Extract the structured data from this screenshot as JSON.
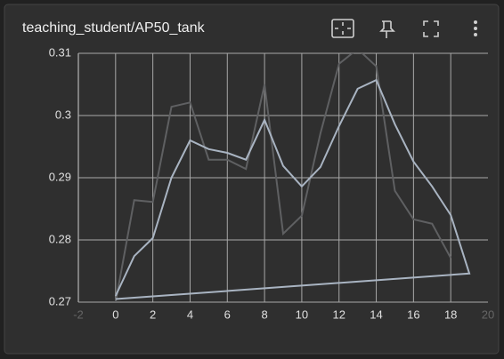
{
  "chart_data": {
    "type": "line",
    "title": "teaching_student/AP50_tank",
    "xlim": [
      -2,
      20
    ],
    "xticks": [
      -2,
      0,
      2,
      4,
      6,
      8,
      10,
      12,
      14,
      16,
      18,
      20
    ],
    "ylim": [
      0.27,
      0.31
    ],
    "yticks": [
      0.27,
      0.28,
      0.29,
      0.3,
      0.31
    ],
    "grid": true,
    "series": [
      {
        "color": "#5f6062",
        "x": [
          0,
          1,
          2,
          3,
          4,
          5,
          6,
          7,
          8,
          9,
          10,
          11,
          12,
          13,
          14,
          15,
          16,
          17,
          18
        ],
        "values": [
          0.27,
          0.2864,
          0.2861,
          0.3014,
          0.3021,
          0.2929,
          0.2929,
          0.2914,
          0.305,
          0.281,
          0.2839,
          0.2971,
          0.3083,
          0.3107,
          0.3079,
          0.2879,
          0.2833,
          0.2826,
          0.2771
        ]
      },
      {
        "color": "#a9b4c2",
        "x": [
          0,
          1,
          2,
          3,
          4,
          5,
          6,
          7,
          8,
          9,
          10,
          11,
          12,
          13,
          14,
          15,
          16,
          17,
          18,
          19,
          0
        ],
        "values": [
          0.271,
          0.2774,
          0.2803,
          0.29,
          0.296,
          0.2946,
          0.294,
          0.2929,
          0.2993,
          0.2919,
          0.2886,
          0.2917,
          0.2983,
          0.3043,
          0.3057,
          0.2986,
          0.2926,
          0.2886,
          0.284,
          0.2746,
          0.2705
        ]
      }
    ]
  }
}
